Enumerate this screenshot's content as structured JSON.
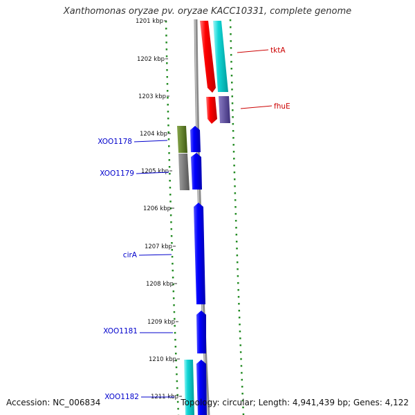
{
  "header": {
    "title": "Xanthomonas oryzae pv. oryzae KACC10331, complete genome"
  },
  "footer": {
    "accession": "Accession: NC_006834",
    "topology": "Topology: circular; Length: 4,941,439 bp; Genes: 4,122"
  },
  "ruler": {
    "ticks": [
      "1201 kbp",
      "1202 kbp",
      "1203 kbp",
      "1204 kbp",
      "1205 kbp",
      "1206 kbp",
      "1207 kbp",
      "1208 kbp",
      "1209 kbp",
      "1210 kbp",
      "1211 kbp"
    ]
  },
  "genes": [
    {
      "label": "tktA",
      "color": "#cc0000"
    },
    {
      "label": "fhuE",
      "color": "#cc0000"
    },
    {
      "label": "XOO1178",
      "color": "#0000cc"
    },
    {
      "label": "XOO1179",
      "color": "#0000cc"
    },
    {
      "label": "cirA",
      "color": "#0000cc"
    },
    {
      "label": "XOO1181",
      "color": "#0000cc"
    },
    {
      "label": "XOO1182",
      "color": "#0000cc"
    }
  ],
  "colors": {
    "forward_cds": "#ff0000",
    "reverse_cds": "#0000ff",
    "cog_cyan": "#00cccc",
    "cog_purple": "#5a4a9a",
    "cog_olive": "#5f7f1f",
    "cog_gray": "#707070",
    "backbone": "#8a8a8a",
    "dotted_ring": "#228b22"
  }
}
